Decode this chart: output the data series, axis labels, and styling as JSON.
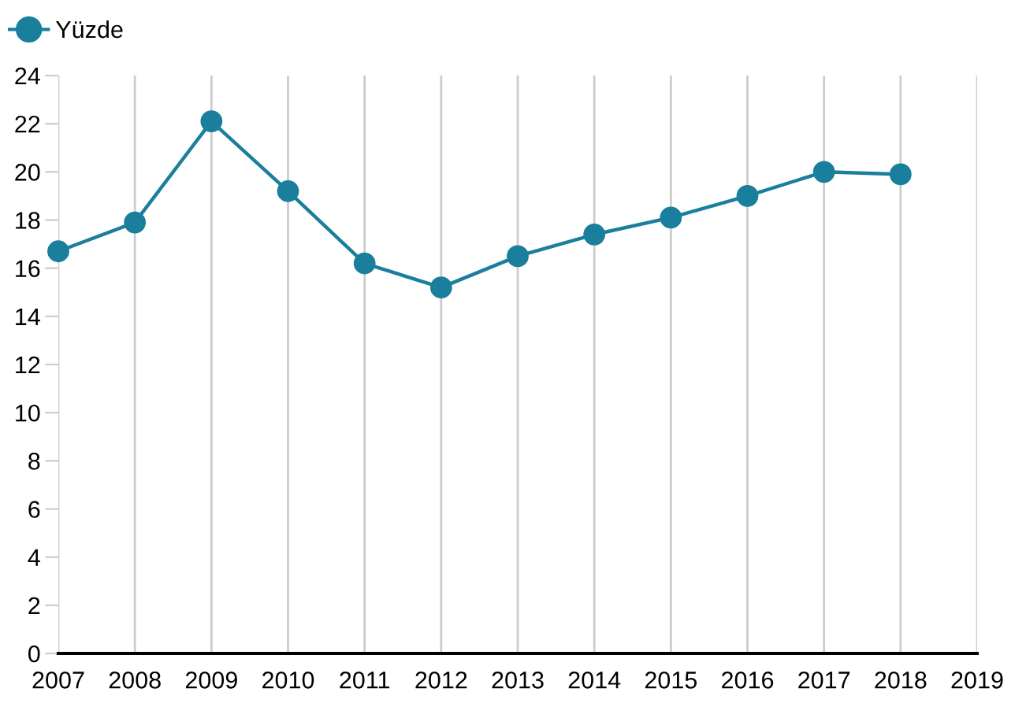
{
  "chart_data": {
    "type": "line",
    "x": [
      2007,
      2008,
      2009,
      2010,
      2011,
      2012,
      2013,
      2014,
      2015,
      2016,
      2017,
      2018
    ],
    "series": [
      {
        "name": "Yüzde",
        "color": "#1a7f9c",
        "values": [
          16.7,
          17.9,
          22.1,
          19.2,
          16.2,
          15.2,
          16.5,
          17.4,
          18.1,
          19.0,
          20.0,
          19.9
        ]
      }
    ],
    "xlim": [
      2007,
      2019
    ],
    "xticks": [
      2007,
      2008,
      2009,
      2010,
      2011,
      2012,
      2013,
      2014,
      2015,
      2016,
      2017,
      2018,
      2019
    ],
    "ylim": [
      0,
      24
    ],
    "yticks": [
      0,
      2,
      4,
      6,
      8,
      10,
      12,
      14,
      16,
      18,
      20,
      22,
      24
    ],
    "grid": "x",
    "legend": "top left",
    "marker": "circle",
    "line_style": "solid"
  }
}
